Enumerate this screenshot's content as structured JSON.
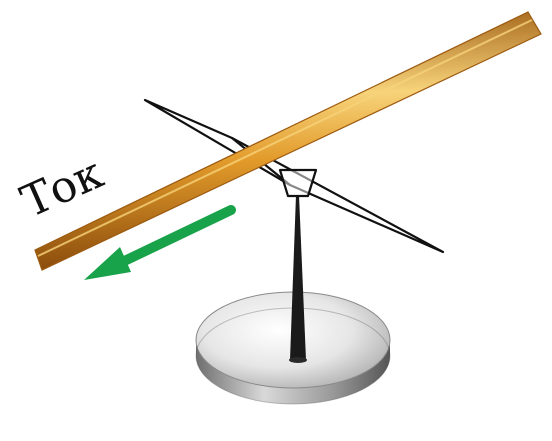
{
  "labels": {
    "current": "Ток"
  },
  "colors": {
    "wire_core": "#e29a2a",
    "wire_edge": "#9c5a10",
    "wire_highlight": "#f7d37a",
    "arrow": "#18a24a",
    "needle_outline": "#111111",
    "stand": "#1a1a1a",
    "base_light": "#f4f4f4",
    "base_dark": "#7d7d7d"
  },
  "icons": {
    "compass_needle": "compass-needle-icon",
    "direction_arrow": "current-direction-arrow-icon"
  }
}
